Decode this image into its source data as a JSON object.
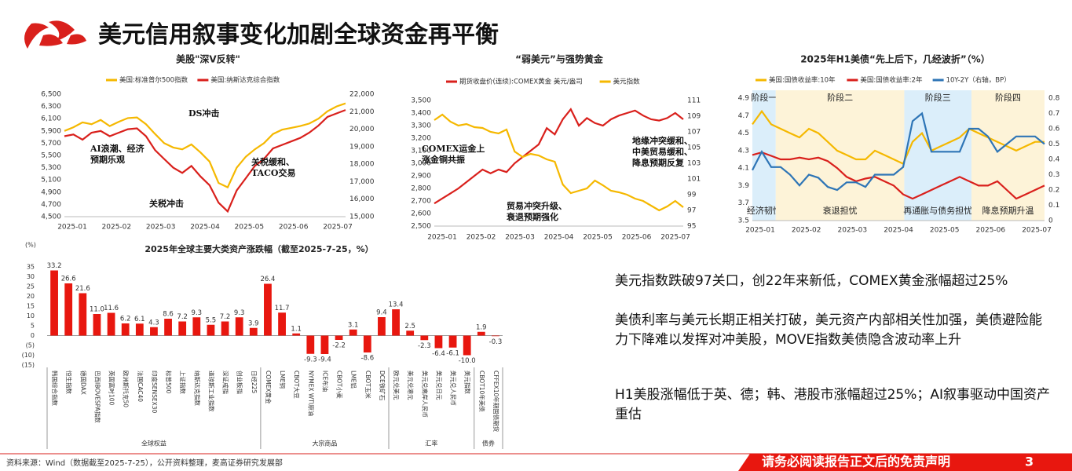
{
  "header": {
    "title": "美元信用叙事变化加剧全球资金再平衡"
  },
  "chart_data": [
    {
      "type": "line",
      "title": "美股\"深V反转\"",
      "x_labels": [
        "2025-01",
        "2025-02",
        "2025-03",
        "2025-04",
        "2025-05",
        "2025-06",
        "2025-07"
      ],
      "ylim": [
        4500,
        6500
      ],
      "yticks": [
        {
          "value": 4500,
          "label": "4,500"
        },
        {
          "value": 4700,
          "label": "4,700"
        },
        {
          "value": 4900,
          "label": "4,900"
        },
        {
          "value": 5100,
          "label": "5,100"
        },
        {
          "value": 5300,
          "label": "5,300"
        },
        {
          "value": 5500,
          "label": "5,500"
        },
        {
          "value": 5700,
          "label": "5,700"
        },
        {
          "value": 5900,
          "label": "5,900"
        },
        {
          "value": 6100,
          "label": "6,100"
        },
        {
          "value": 6300,
          "label": "6,300"
        },
        {
          "value": 6500,
          "label": "6,500"
        }
      ],
      "y2lim": [
        15000,
        22000
      ],
      "y2ticks": [
        {
          "value": 15000,
          "label": "15,000"
        },
        {
          "value": 16000,
          "label": "16,000"
        },
        {
          "value": 17000,
          "label": "17,000"
        },
        {
          "value": 18000,
          "label": "18,000"
        },
        {
          "value": 19000,
          "label": "19,000"
        },
        {
          "value": 20000,
          "label": "20,000"
        },
        {
          "value": 21000,
          "label": "21,000"
        },
        {
          "value": 22000,
          "label": "22,000"
        }
      ],
      "series": [
        {
          "name": "美国:标准普尔500指数",
          "color": "#f5b800",
          "values": [
            5900,
            5960,
            6040,
            6010,
            6080,
            5980,
            6050,
            6110,
            6120,
            6010,
            5850,
            5700,
            5630,
            5600,
            5680,
            5550,
            5400,
            5050,
            4980,
            5300,
            5480,
            5600,
            5700,
            5850,
            5920,
            5950,
            5980,
            6020,
            6100,
            6220,
            6300,
            6350
          ]
        },
        {
          "name": "美国:纳斯达克综合指数",
          "color": "#d9201c",
          "axis": "y2",
          "values": [
            19600,
            19700,
            19400,
            19800,
            19900,
            19600,
            19800,
            20000,
            20050,
            19600,
            18800,
            18300,
            17800,
            17500,
            17900,
            17300,
            16800,
            15800,
            15300,
            16500,
            17200,
            17900,
            18300,
            18900,
            19100,
            19300,
            19500,
            19800,
            20200,
            20700,
            20900,
            21100
          ]
        }
      ],
      "annotations": [
        [
          "DS冲击"
        ],
        [
          "AI浪潮、经济",
          "预期乐观"
        ],
        [
          "关税冲击"
        ],
        [
          "关税缓和、",
          "TACO交易"
        ]
      ]
    },
    {
      "type": "line",
      "title": "“弱美元”与强势黄金",
      "x_labels": [
        "2025-01",
        "2025-02",
        "2025-03",
        "2025-04",
        "2025-05",
        "2025-06",
        "2025-07"
      ],
      "ylim": [
        2500,
        3500
      ],
      "yticks": [
        {
          "value": 2500,
          "label": "2,500"
        },
        {
          "value": 2600,
          "label": "2,600"
        },
        {
          "value": 2700,
          "label": "2,700"
        },
        {
          "value": 2800,
          "label": "2,800"
        },
        {
          "value": 2900,
          "label": "2,900"
        },
        {
          "value": 3000,
          "label": "3,000"
        },
        {
          "value": 3100,
          "label": "3,100"
        },
        {
          "value": 3200,
          "label": "3,200"
        },
        {
          "value": 3300,
          "label": "3,300"
        },
        {
          "value": 3400,
          "label": "3,400"
        },
        {
          "value": 3500,
          "label": "3,500"
        }
      ],
      "y2lim": [
        95,
        111
      ],
      "y2ticks": [
        95,
        97,
        99,
        101,
        103,
        105,
        107,
        109,
        111
      ],
      "series": [
        {
          "name": "期货收盘价(连续):COMEX黄金 美元/盎司",
          "color": "#d9201c",
          "values": [
            2680,
            2720,
            2760,
            2800,
            2850,
            2900,
            2950,
            2920,
            2950,
            2930,
            3000,
            3050,
            3100,
            3150,
            3280,
            3230,
            3350,
            3430,
            3300,
            3360,
            3320,
            3300,
            3350,
            3380,
            3400,
            3420,
            3380,
            3350,
            3340,
            3360,
            3400,
            3350
          ]
        },
        {
          "name": "美元指数",
          "color": "#f5b800",
          "axis": "y2",
          "values": [
            108.5,
            109.2,
            108.3,
            107.8,
            108.0,
            107.6,
            107.5,
            107.0,
            106.8,
            107.3,
            104.5,
            103.8,
            104.2,
            104.0,
            103.5,
            103.2,
            100.3,
            99.2,
            99.5,
            99.8,
            100.8,
            100.2,
            99.5,
            99.3,
            99.0,
            98.5,
            98.2,
            97.6,
            97.0,
            97.5,
            98.2,
            97.4
          ]
        }
      ],
      "annotations": [
        [
          "COMEX运金上",
          "涨金铜共振"
        ],
        [
          "贸易冲突升级、",
          "衰退预期强化"
        ],
        [
          "地缘冲突缓和、",
          "中美贸易缓和、",
          "降息预期反复"
        ]
      ]
    },
    {
      "type": "line",
      "title": "2025年H1美债“先上后下，几经波折”（%）",
      "x_labels": [
        "2025-01",
        "2025-02",
        "2025-03",
        "2025-04",
        "2025-05",
        "2025-06",
        "2025-07"
      ],
      "ylim": [
        3.5,
        4.9
      ],
      "yticks": [
        3.5,
        3.7,
        3.9,
        4.1,
        4.3,
        4.5,
        4.7,
        4.9
      ],
      "y2lim": [
        0,
        0.8
      ],
      "y2ticks": [
        0,
        0.1,
        0.2,
        0.3,
        0.4,
        0.5,
        0.6,
        0.7,
        0.8
      ],
      "series": [
        {
          "name": "美国:国债收益率:10年",
          "color": "#f5b800",
          "values": [
            4.6,
            4.75,
            4.6,
            4.55,
            4.5,
            4.45,
            4.55,
            4.5,
            4.4,
            4.3,
            4.25,
            4.2,
            4.2,
            4.3,
            4.25,
            4.2,
            4.15,
            4.4,
            4.5,
            4.3,
            4.35,
            4.4,
            4.45,
            4.55,
            4.5,
            4.45,
            4.4,
            4.35,
            4.3,
            4.35,
            4.4,
            4.4
          ]
        },
        {
          "name": "美国:国债收益率:2年",
          "color": "#d9201c",
          "values": [
            4.25,
            4.28,
            4.24,
            4.2,
            4.2,
            4.22,
            4.2,
            4.22,
            4.18,
            4.1,
            4.0,
            3.95,
            3.98,
            4.0,
            3.95,
            3.9,
            3.8,
            3.75,
            3.8,
            3.85,
            3.9,
            3.95,
            4.0,
            3.95,
            3.9,
            3.9,
            3.95,
            3.85,
            3.75,
            3.8,
            3.85,
            3.9
          ]
        },
        {
          "name": "10Y-2Y（右轴，BP）",
          "color": "#2e75b6",
          "axis": "y2",
          "values": [
            0.33,
            0.45,
            0.35,
            0.35,
            0.3,
            0.23,
            0.3,
            0.28,
            0.22,
            0.2,
            0.25,
            0.25,
            0.22,
            0.3,
            0.3,
            0.3,
            0.35,
            0.65,
            0.7,
            0.45,
            0.45,
            0.45,
            0.45,
            0.6,
            0.6,
            0.55,
            0.45,
            0.5,
            0.55,
            0.55,
            0.55,
            0.5
          ]
        }
      ],
      "stages": [
        {
          "name": "阶段一",
          "note": "经济韧性"
        },
        {
          "name": "阶段二",
          "note": "衰退担忧"
        },
        {
          "name": "阶段三",
          "note": "再通胀与债务担忧"
        },
        {
          "name": "阶段四",
          "note": "降息预期升温"
        }
      ]
    },
    {
      "type": "bar",
      "title": "2025年全球主要大类资产涨跌幅（截至2025-7-25，%）",
      "ylabel": "(%)",
      "color": "#e8170f",
      "categories": [
        "韩国综合指数",
        "恒生指数",
        "德国DAX",
        "巴西IBOVESPA指数",
        "英国富时100",
        "欧洲斯托克50",
        "法国CAC40",
        "印度SENSEX30",
        "标普500",
        "上证指数",
        "纳斯达克指数",
        "道琼斯工业指数",
        "深证成指",
        "创业板指",
        "日经225",
        "COMEX黄金",
        "LME铜",
        "CBOT大豆",
        "NYMEX WTI原油",
        "ICE布油",
        "CBOT小麦",
        "LME铝",
        "CBOT玉米",
        "DCE铁矿石",
        "欧元兑美元",
        "美元兑港元",
        "美元兑离岸人民币",
        "美元兑日元",
        "美元兑人民币",
        "美元指数",
        "CBOT10年美债",
        "CFFEX10年期国债期货"
      ],
      "values": [
        33.2,
        26.6,
        21.6,
        11.0,
        11.6,
        6.2,
        6.1,
        4.3,
        8.6,
        7.2,
        9.3,
        5.5,
        7.2,
        9.3,
        3.9,
        26.4,
        11.7,
        1.1,
        -9.3,
        -9.4,
        -2.2,
        3.1,
        -8.6,
        9.4,
        13.4,
        2.5,
        -2.3,
        -6.4,
        -6.1,
        -10.0,
        1.9,
        -0.3
      ],
      "value_labels": [
        "33.2",
        "26.6",
        "21.6",
        "11.0",
        "11.6",
        "6.2",
        "6.1",
        "4.3",
        "8.6",
        "7.2",
        "9.3",
        "5.5",
        "7.2",
        "9.3",
        "3.9",
        "26.4",
        "11.7",
        "1.1",
        "-9.3",
        "-9.4",
        "-2.2",
        "3.1",
        "-8.6",
        "9.4",
        "13.4",
        "2.5",
        "-2.3",
        "-6.4",
        "-6.1",
        "-10.0",
        "1.9",
        "-0.3"
      ],
      "ylim": [
        -15,
        35
      ],
      "yticks": [
        {
          "value": -15,
          "label": "(15)"
        },
        {
          "value": -10,
          "label": "(10)"
        },
        {
          "value": -5,
          "label": "(5)"
        },
        0,
        5,
        10,
        15,
        20,
        25,
        30,
        35
      ],
      "groups": [
        "全球权益",
        "大宗商品",
        "汇率",
        "债券"
      ]
    }
  ],
  "bullets": [
    "美元指数跌破97关口，创22年来新低，COMEX黄金涨幅超过25%",
    "美债利率与美元长期正相关打破，美元资产内部相关性加强，美债避险能力下降难以发挥对冲美股，MOVE指数美债隐含波动率上升",
    "H1美股涨幅低于英、德；韩、港股市涨幅超过25%；AI叙事驱动中国资产重估"
  ],
  "footer": {
    "source": "资料来源：Wind（数据截至2025-7-25），公开资料整理，麦高证券研究发展部",
    "disclaimer": "请务必阅读报告正文后的免责声明",
    "page": "3"
  }
}
